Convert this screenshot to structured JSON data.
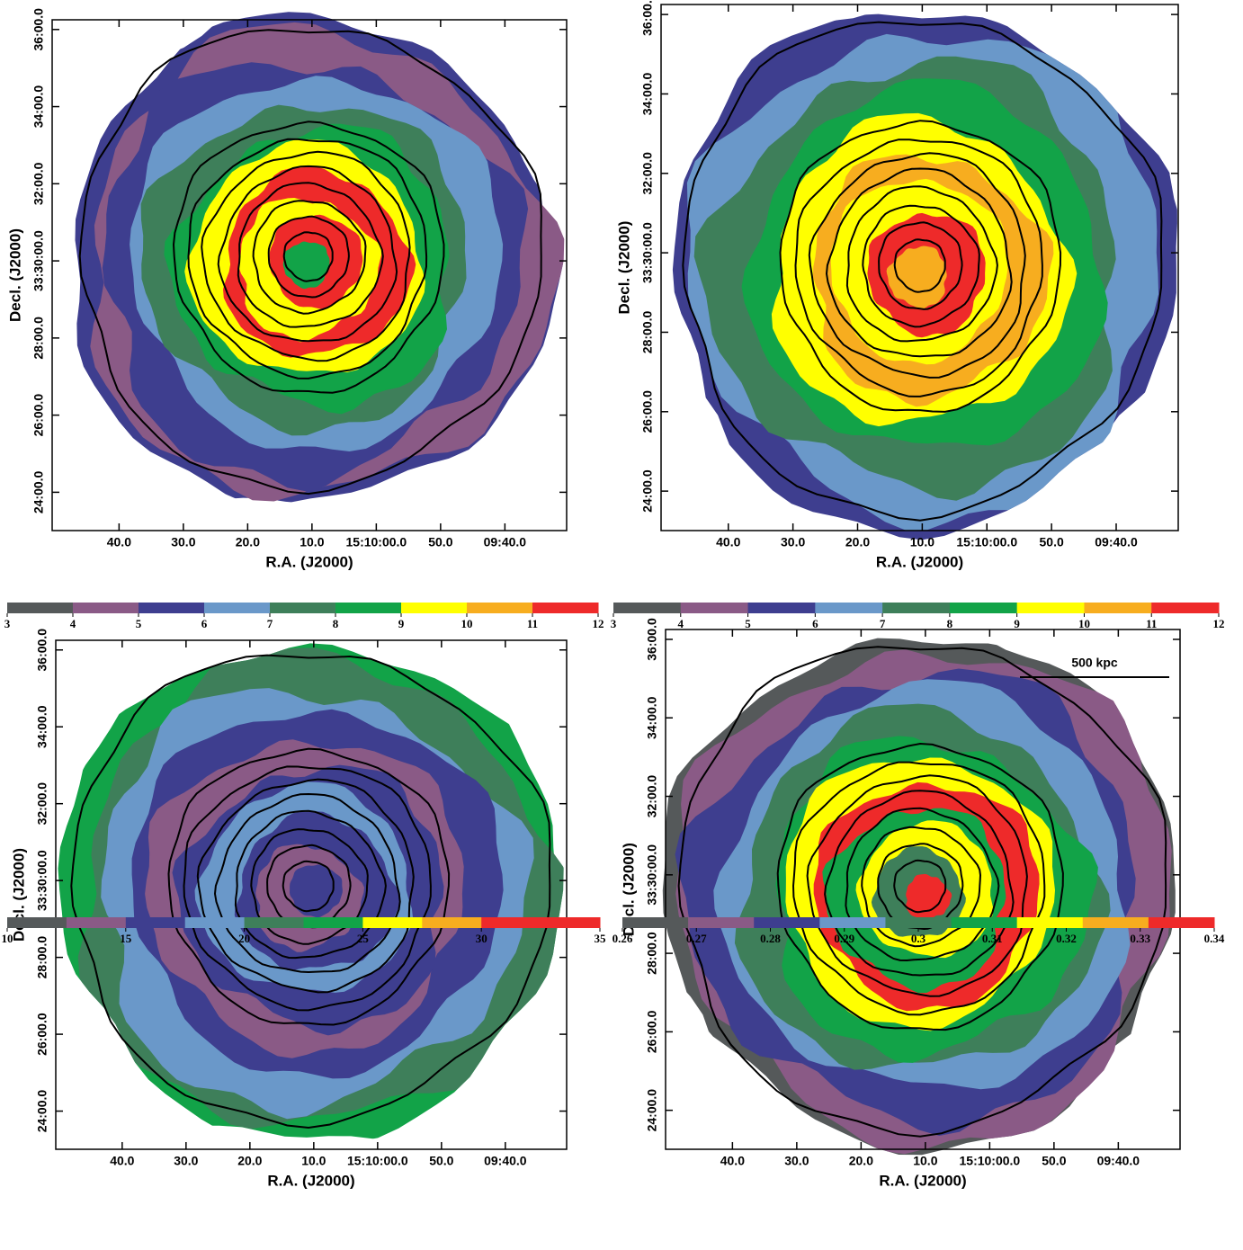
{
  "panels": [
    {
      "xlabel": "R.A. (J2000)",
      "ylabel": "Decl. (J2000)",
      "xtick_labels": [
        "40.0",
        "30.0",
        "20.0",
        "10.0",
        "15:10:00.0",
        "50.0",
        "09:40.0"
      ],
      "ytick_labels": [
        "24:00.0",
        "26:00.0",
        "28:00.0",
        "33:30:00.0",
        "32:00.0",
        "34:00.0",
        "36:00.0"
      ],
      "colorbar": {
        "ticks": [
          3,
          4,
          5,
          6,
          7,
          8,
          9,
          10,
          11,
          12
        ],
        "colors": [
          "#55595a",
          "#8a5a86",
          "#3e3e8f",
          "#6a98c9",
          "#3e7f5a",
          "#12a348",
          "#ffff00",
          "#f7ad1f",
          "#ee2a2a"
        ]
      }
    },
    {
      "xlabel": "R.A. (J2000)",
      "ylabel": "Decl. (J2000)",
      "xtick_labels": [
        "40.0",
        "30.0",
        "20.0",
        "10.0",
        "15:10:00.0",
        "50.0",
        "09:40.0"
      ],
      "ytick_labels": [
        "24:00.0",
        "26:00.0",
        "28:00.0",
        "33:30:00.0",
        "32:00.0",
        "34:00.0",
        "36:00.0"
      ],
      "colorbar": {
        "ticks": [
          3,
          4,
          5,
          6,
          7,
          8,
          9,
          10,
          11,
          12
        ],
        "colors": [
          "#55595a",
          "#8a5a86",
          "#3e3e8f",
          "#6a98c9",
          "#3e7f5a",
          "#12a348",
          "#ffff00",
          "#f7ad1f",
          "#ee2a2a"
        ]
      }
    },
    {
      "xlabel": "R.A. (J2000)",
      "ylabel": "Decl. (J2000)",
      "xtick_labels": [
        "40.0",
        "30.0",
        "20.0",
        "10.0",
        "15:10:00.0",
        "50.0",
        "09:40.0"
      ],
      "ytick_labels": [
        "24:00.0",
        "26:00.0",
        "28:00.0",
        "33:30:00.0",
        "32:00.0",
        "34:00.0",
        "36:00.0"
      ],
      "colorbar": {
        "ticks": [
          10,
          15,
          20,
          25,
          30,
          35
        ],
        "colors": [
          "#55595a",
          "#8a5a86",
          "#3e3e8f",
          "#6a98c9",
          "#3e7f5a",
          "#12a348",
          "#ffff00",
          "#f7ad1f",
          "#ee2a2a",
          "#ee2a2a"
        ]
      }
    },
    {
      "xlabel": "R.A. (J2000)",
      "ylabel": "Decl. (J2000)",
      "scale_label": "500 kpc",
      "xtick_labels": [
        "40.0",
        "30.0",
        "20.0",
        "10.0",
        "15:10:00.0",
        "50.0",
        "09:40.0"
      ],
      "ytick_labels": [
        "24:00.0",
        "26:00.0",
        "28:00.0",
        "33:30:00.0",
        "32:00.0",
        "34:00.0",
        "36:00.0"
      ],
      "colorbar": {
        "ticks": [
          0.26,
          0.27,
          0.28,
          0.29,
          0.3,
          0.31,
          0.32,
          0.33,
          0.34
        ],
        "colors": [
          "#55595a",
          "#8a5a86",
          "#3e3e8f",
          "#6a98c9",
          "#3e7f5a",
          "#12a348",
          "#ffff00",
          "#f7ad1f",
          "#ee2a2a"
        ]
      }
    }
  ]
}
